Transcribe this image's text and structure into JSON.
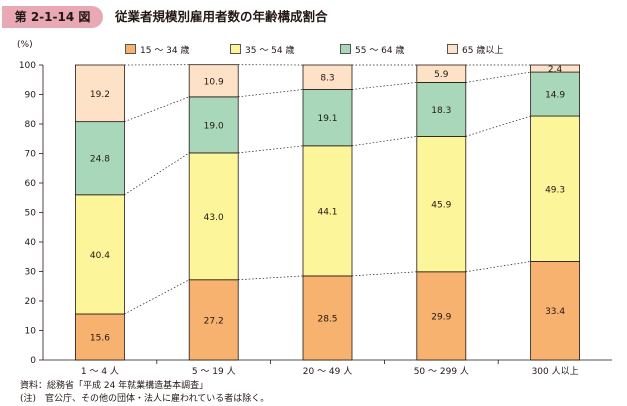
{
  "header": {
    "figure_number": "第 2-1-14 図",
    "title": "従業者規模別雇用者数の年齢構成割合"
  },
  "chart_data": {
    "type": "bar",
    "stacked": true,
    "unit": "(%)",
    "ylim": [
      0,
      100
    ],
    "yticks": [
      0,
      10,
      20,
      30,
      40,
      50,
      60,
      70,
      80,
      90,
      100
    ],
    "categories": [
      "1 〜 4 人",
      "5 〜 19 人",
      "20 〜 49 人",
      "50 〜 299 人",
      "300 人以上"
    ],
    "series": [
      {
        "name": "15 〜 34 歳",
        "color": "#f6b26e",
        "values": [
          15.6,
          27.2,
          28.5,
          29.9,
          33.4
        ]
      },
      {
        "name": "35 〜 54 歳",
        "color": "#fdf59a",
        "values": [
          40.4,
          43.0,
          44.1,
          45.9,
          49.3
        ]
      },
      {
        "name": "55 〜 64 歳",
        "color": "#a8d8b9",
        "values": [
          24.8,
          19.0,
          19.1,
          18.3,
          14.9
        ]
      },
      {
        "name": "65 歳以上",
        "color": "#fde2c8",
        "values": [
          19.2,
          10.9,
          8.3,
          5.9,
          2.4
        ]
      }
    ],
    "connector_lines": "dotted",
    "grid": false,
    "legend_position": "top"
  },
  "footnotes": [
    "資料：総務省「平成 24 年就業構造基本調査」",
    "(注)　官公庁、その他の団体・法人に雇われている者は除く。"
  ]
}
